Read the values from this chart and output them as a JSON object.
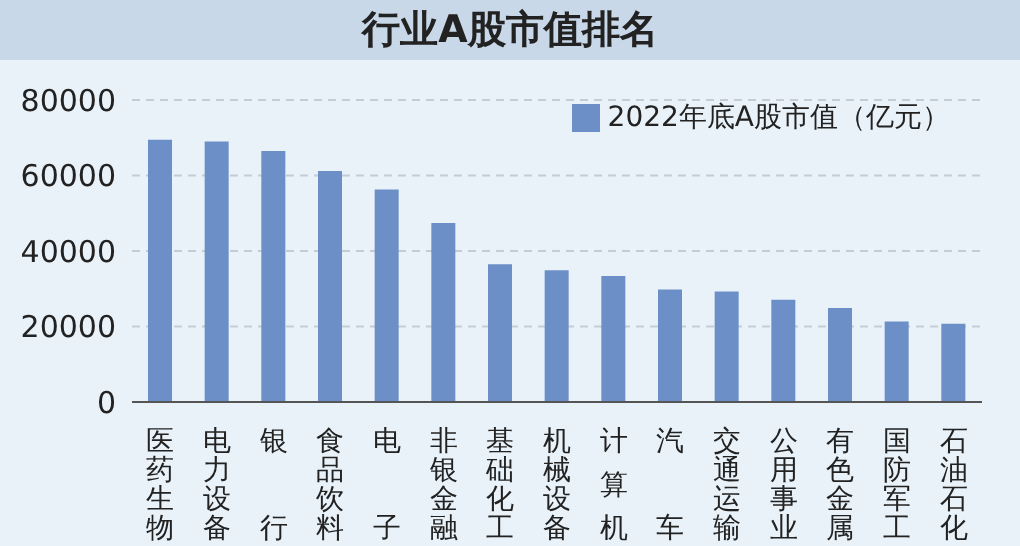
{
  "chart_data": {
    "type": "bar",
    "title": "行业A股市值排名",
    "categories": [
      "医药生物",
      "电力设备",
      "银行",
      "食品饮料",
      "电子",
      "非银金融",
      "基础化工",
      "机械设备",
      "计算机",
      "汽车",
      "交通运输",
      "公用事业",
      "有色金属",
      "国防军工",
      "石油石化"
    ],
    "series": [
      {
        "name": "2022年底A股市值（亿元）",
        "color": "#6b8fc6",
        "values": [
          69500,
          69000,
          66500,
          61200,
          56300,
          47400,
          36500,
          34900,
          33400,
          29800,
          29300,
          27100,
          24900,
          21300,
          20700
        ]
      }
    ],
    "ylim": [
      0,
      80000
    ],
    "yticks": [
      0,
      20000,
      40000,
      60000,
      80000
    ],
    "grid": "y",
    "legend": "top right"
  }
}
